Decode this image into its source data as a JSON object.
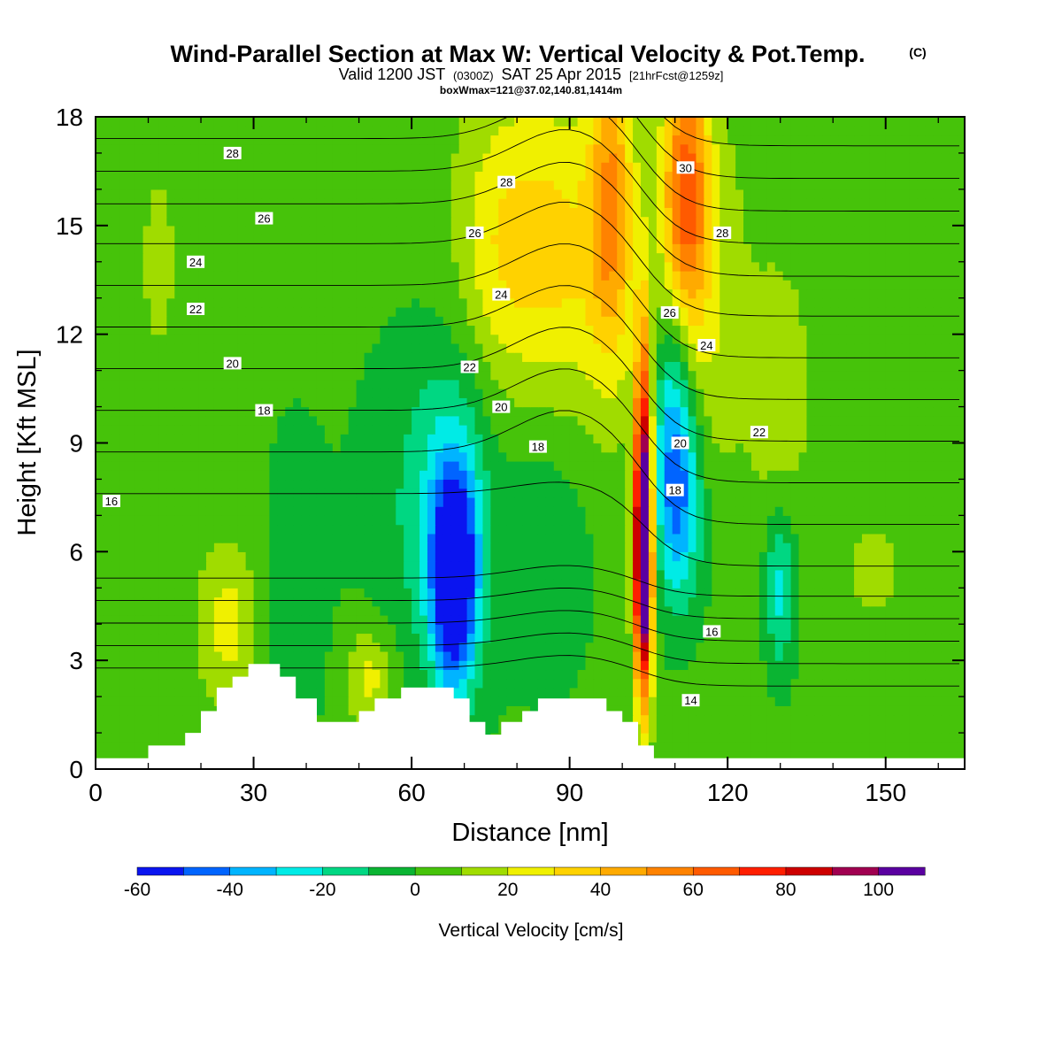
{
  "header": {
    "title": "Wind-Parallel Section at Max W: Vertical Velocity & Pot.Temp.",
    "copyright": "(C)",
    "valid_prefix": "Valid 1200 JST",
    "valid_utc": "(0300Z)",
    "valid_date": "SAT 25 Apr 2015",
    "forecast": "[21hrFcst@1259z]",
    "box_info": "boxWmax=121@37.02,140.81,1414m"
  },
  "chart_data": {
    "type": "heatmap",
    "title": "Wind-Parallel Section at Max W: Vertical Velocity & Pot.Temp.",
    "xlabel": "Distance [nm]",
    "ylabel": "Height [Kft MSL]",
    "xlim": [
      0,
      165
    ],
    "ylim": [
      0,
      18
    ],
    "x_ticks": [
      0,
      30,
      60,
      90,
      120,
      150
    ],
    "y_ticks": [
      0,
      3,
      6,
      9,
      12,
      15,
      18
    ],
    "x_tick_labels": [
      "0",
      "30",
      "60",
      "90",
      "120",
      "150"
    ],
    "y_tick_labels": [
      "0",
      "3",
      "6",
      "9",
      "12",
      "15",
      "18"
    ],
    "colorbar": {
      "label": "Vertical Velocity [cm/s]",
      "levels": [
        -60,
        -50,
        -40,
        -30,
        -20,
        -10,
        0,
        10,
        20,
        30,
        40,
        50,
        60,
        70,
        80,
        90,
        100,
        110
      ],
      "tick_values": [
        -60,
        -40,
        -20,
        0,
        20,
        40,
        60,
        80,
        100
      ],
      "tick_labels": [
        "-60",
        "-40",
        "-20",
        "0",
        "20",
        "40",
        "60",
        "80",
        "100"
      ],
      "colors": [
        "#0a14f0",
        "#0064ff",
        "#00b4ff",
        "#00ebe6",
        "#00d782",
        "#0ab432",
        "#46c30a",
        "#a0dc00",
        "#f0f000",
        "#ffd200",
        "#ffaa00",
        "#ff8200",
        "#ff5a00",
        "#ff1e00",
        "#cd0000",
        "#a00050",
        "#5a00a0"
      ]
    },
    "terrain_kft": [
      {
        "x": 0,
        "top": 0.3
      },
      {
        "x": 10,
        "top": 0.65
      },
      {
        "x": 17,
        "top": 1.0
      },
      {
        "x": 20,
        "top": 1.6
      },
      {
        "x": 23,
        "top": 2.25
      },
      {
        "x": 26,
        "top": 2.55
      },
      {
        "x": 29,
        "top": 2.9
      },
      {
        "x": 35,
        "top": 2.55
      },
      {
        "x": 38,
        "top": 1.95
      },
      {
        "x": 42,
        "top": 1.3
      },
      {
        "x": 50,
        "top": 1.6
      },
      {
        "x": 53,
        "top": 1.95
      },
      {
        "x": 58,
        "top": 2.25
      },
      {
        "x": 68,
        "top": 1.95
      },
      {
        "x": 71,
        "top": 1.3
      },
      {
        "x": 74,
        "top": 0.95
      },
      {
        "x": 77,
        "top": 1.3
      },
      {
        "x": 81,
        "top": 1.6
      },
      {
        "x": 84,
        "top": 1.95
      },
      {
        "x": 97,
        "top": 1.6
      },
      {
        "x": 100,
        "top": 1.3
      },
      {
        "x": 103,
        "top": 0.65
      },
      {
        "x": 106,
        "top": 0.3
      },
      {
        "x": 165,
        "top": 0.3
      }
    ],
    "vertical_velocity_features": [
      {
        "x": 104,
        "y": 5.5,
        "sx": 1.2,
        "sy": 2.6,
        "value": 110
      },
      {
        "x": 104,
        "y": 9.0,
        "sx": 1.2,
        "sy": 3.0,
        "value": 55
      },
      {
        "x": 98,
        "y": 15.5,
        "sx": 3.0,
        "sy": 3.2,
        "value": 45
      },
      {
        "x": 112,
        "y": 16.0,
        "sx": 3.0,
        "sy": 2.8,
        "value": 55
      },
      {
        "x": 115,
        "y": 13.0,
        "sx": 6.0,
        "sy": 4.0,
        "value": 18
      },
      {
        "x": 78,
        "y": 14.5,
        "sx": 7.0,
        "sy": 3.0,
        "value": 28
      },
      {
        "x": 90,
        "y": 14.0,
        "sx": 6.0,
        "sy": 3.5,
        "value": 22
      },
      {
        "x": 68,
        "y": 5.3,
        "sx": 2.8,
        "sy": 2.0,
        "value": -70
      },
      {
        "x": 68,
        "y": 6.5,
        "sx": 5.0,
        "sy": 3.5,
        "value": -20
      },
      {
        "x": 62,
        "y": 7.5,
        "sx": 9.0,
        "sy": 3.2,
        "value": -12
      },
      {
        "x": 110,
        "y": 9.5,
        "sx": 2.8,
        "sy": 2.5,
        "value": -40
      },
      {
        "x": 111,
        "y": 7.0,
        "sx": 3.5,
        "sy": 2.0,
        "value": -28
      },
      {
        "x": 130,
        "y": 5.0,
        "sx": 2.0,
        "sy": 1.6,
        "value": -28
      },
      {
        "x": 38,
        "y": 5.0,
        "sx": 4.0,
        "sy": 3.0,
        "value": -12
      },
      {
        "x": 25,
        "y": 4.0,
        "sx": 4.0,
        "sy": 1.5,
        "value": 22
      },
      {
        "x": 52,
        "y": 2.5,
        "sx": 3.0,
        "sy": 1.0,
        "value": 22
      },
      {
        "x": 86,
        "y": 6.5,
        "sx": 6.0,
        "sy": 3.0,
        "value": -12
      },
      {
        "x": 130,
        "y": 10.5,
        "sx": 4.0,
        "sy": 2.5,
        "value": 15
      },
      {
        "x": 12,
        "y": 14.0,
        "sx": 5.0,
        "sy": 4.0,
        "value": 8
      },
      {
        "x": 148,
        "y": 5.5,
        "sx": 8.0,
        "sy": 2.0,
        "value": 8
      }
    ],
    "theta_contour_labels": [
      {
        "label": "28",
        "x": 26,
        "y": 17.0
      },
      {
        "label": "26",
        "x": 32,
        "y": 15.2
      },
      {
        "label": "24",
        "x": 19,
        "y": 14.0
      },
      {
        "label": "22",
        "x": 19,
        "y": 12.7
      },
      {
        "label": "20",
        "x": 26,
        "y": 11.2
      },
      {
        "label": "18",
        "x": 32,
        "y": 9.9
      },
      {
        "label": "16",
        "x": 3,
        "y": 7.4
      },
      {
        "label": "28",
        "x": 78,
        "y": 16.2
      },
      {
        "label": "26",
        "x": 72,
        "y": 14.8
      },
      {
        "label": "24",
        "x": 77,
        "y": 13.1
      },
      {
        "label": "22",
        "x": 71,
        "y": 11.1
      },
      {
        "label": "20",
        "x": 77,
        "y": 10.0
      },
      {
        "label": "18",
        "x": 84,
        "y": 8.9
      },
      {
        "label": "30",
        "x": 112,
        "y": 16.6
      },
      {
        "label": "28",
        "x": 119,
        "y": 14.8
      },
      {
        "label": "26",
        "x": 109,
        "y": 12.6
      },
      {
        "label": "24",
        "x": 116,
        "y": 11.7
      },
      {
        "label": "22",
        "x": 126,
        "y": 9.3
      },
      {
        "label": "20",
        "x": 111,
        "y": 9.0
      },
      {
        "label": "18",
        "x": 110,
        "y": 7.7
      },
      {
        "label": "16",
        "x": 117,
        "y": 3.8
      },
      {
        "label": "14",
        "x": 113,
        "y": 1.9
      }
    ]
  }
}
